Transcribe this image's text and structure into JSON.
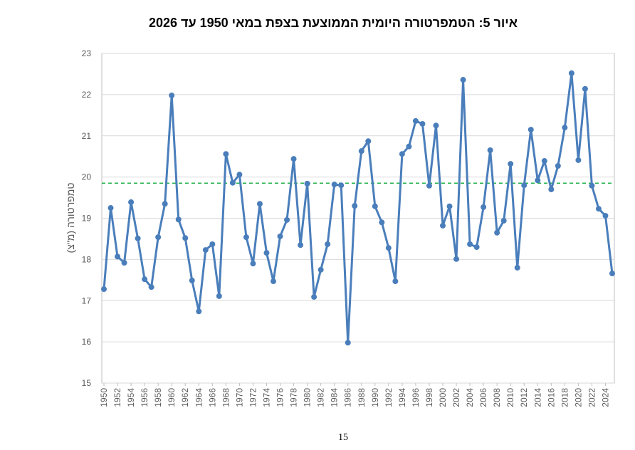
{
  "chart_data": {
    "type": "line",
    "title": "איור 5: הטמפרטורה היומית הממוצעת בצפת במאי 1950 עד 2026",
    "y_label": "טמפרטורה (מ\"צ)",
    "x": [
      1950,
      1951,
      1952,
      1953,
      1954,
      1955,
      1956,
      1957,
      1958,
      1959,
      1960,
      1961,
      1962,
      1963,
      1964,
      1965,
      1966,
      1967,
      1968,
      1969,
      1970,
      1971,
      1972,
      1973,
      1974,
      1975,
      1976,
      1977,
      1978,
      1979,
      1980,
      1981,
      1982,
      1983,
      1984,
      1985,
      1986,
      1987,
      1988,
      1989,
      1990,
      1991,
      1992,
      1993,
      1994,
      1995,
      1996,
      1997,
      1998,
      1999,
      2000,
      2001,
      2002,
      2003,
      2004,
      2005,
      2006,
      2007,
      2008,
      2009,
      2010,
      2011,
      2012,
      2013,
      2014,
      2015,
      2016,
      2017,
      2018,
      2019,
      2020,
      2021,
      2022,
      2023,
      2024,
      2025
    ],
    "series": [
      {
        "color": "#4a7ebb",
        "values": [
          17.28,
          19.25,
          18.07,
          17.92,
          19.39,
          18.51,
          17.52,
          17.33,
          18.54,
          19.35,
          21.98,
          18.97,
          18.52,
          17.49,
          16.74,
          18.23,
          18.37,
          17.11,
          20.56,
          19.86,
          20.06,
          18.54,
          17.9,
          19.35,
          18.16,
          17.47,
          18.56,
          18.96,
          20.44,
          18.35,
          19.84,
          17.09,
          17.75,
          18.37,
          19.82,
          19.8,
          15.98,
          19.3,
          20.63,
          20.87,
          19.29,
          18.9,
          18.28,
          17.47,
          20.56,
          20.74,
          21.36,
          21.29,
          19.79,
          21.25,
          18.82,
          19.29,
          18.01,
          22.36,
          18.37,
          18.3,
          19.27,
          20.65,
          18.65,
          18.94,
          20.32,
          17.8,
          19.8,
          21.15,
          19.92,
          20.39,
          19.7,
          20.27,
          21.2,
          22.52,
          20.41,
          22.14,
          19.79,
          19.23,
          19.06,
          17.66
        ]
      }
    ],
    "reference_line": {
      "value": 19.85,
      "color": "#22b04b"
    },
    "xlim": [
      1950,
      2025
    ],
    "xticks": [
      1950,
      1952,
      1954,
      1956,
      1958,
      1960,
      1962,
      1964,
      1966,
      1968,
      1970,
      1972,
      1974,
      1976,
      1978,
      1980,
      1982,
      1984,
      1986,
      1988,
      1990,
      1992,
      1994,
      1996,
      1998,
      2000,
      2002,
      2004,
      2006,
      2008,
      2010,
      2012,
      2014,
      2016,
      2018,
      2020,
      2022,
      2024
    ],
    "ylim": [
      15,
      23
    ],
    "yticks": [
      15,
      16,
      17,
      18,
      19,
      20,
      21,
      22,
      23
    ],
    "grid": true
  },
  "page_number": "15"
}
